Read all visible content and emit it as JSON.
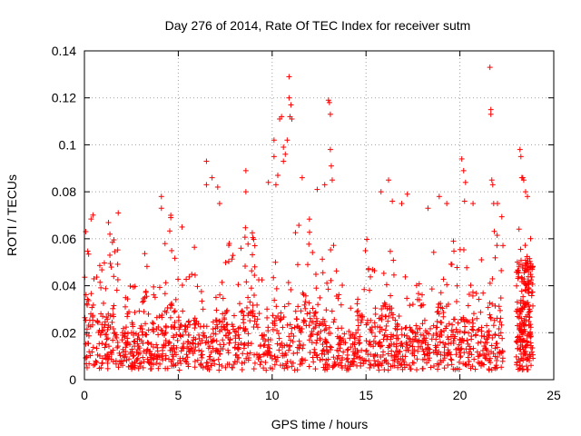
{
  "chart_data": {
    "type": "scatter",
    "title": "Day 276 of 2014, Rate Of TEC Index for receiver sutm",
    "xlabel": "GPS time / hours",
    "ylabel": "ROTI / TECUs",
    "xlim": [
      0,
      25
    ],
    "ylim": [
      0,
      0.14
    ],
    "xticks": [
      0,
      5,
      10,
      15,
      20,
      25
    ],
    "xtick_labels": [
      "0",
      "5",
      "10",
      "15",
      "20",
      "25"
    ],
    "yticks": [
      0,
      0.02,
      0.04,
      0.06,
      0.08,
      0.1,
      0.12,
      0.14
    ],
    "ytick_labels": [
      "0",
      "0.02",
      "0.04",
      "0.06",
      "0.08",
      "0.1",
      "0.12",
      "0.14"
    ],
    "grid": true,
    "marker": "+",
    "marker_color": "#ff0000",
    "series": [
      {
        "name": "ROTI",
        "data_gap_hours": [
          22.3,
          23.0
        ],
        "points": [
          [
            1.8,
            0.071
          ],
          [
            4.1,
            0.078
          ],
          [
            4.1,
            0.073
          ],
          [
            4.6,
            0.069
          ],
          [
            4.6,
            0.07
          ],
          [
            5.2,
            0.065
          ],
          [
            6.5,
            0.093
          ],
          [
            6.5,
            0.083
          ],
          [
            6.8,
            0.086
          ],
          [
            7.1,
            0.082
          ],
          [
            7.2,
            0.075
          ],
          [
            8.6,
            0.089
          ],
          [
            8.6,
            0.08
          ],
          [
            9.8,
            0.084
          ],
          [
            10.1,
            0.102
          ],
          [
            10.1,
            0.095
          ],
          [
            10.2,
            0.083
          ],
          [
            10.3,
            0.087
          ],
          [
            10.4,
            0.111
          ],
          [
            10.5,
            0.112
          ],
          [
            10.6,
            0.099
          ],
          [
            10.6,
            0.093
          ],
          [
            10.7,
            0.096
          ],
          [
            10.8,
            0.102
          ],
          [
            10.9,
            0.129
          ],
          [
            10.9,
            0.12
          ],
          [
            10.95,
            0.112
          ],
          [
            11.0,
            0.117
          ],
          [
            11.05,
            0.111
          ],
          [
            11.6,
            0.086
          ],
          [
            12.4,
            0.081
          ],
          [
            12.8,
            0.083
          ],
          [
            13.0,
            0.119
          ],
          [
            13.05,
            0.118
          ],
          [
            13.1,
            0.113
          ],
          [
            13.1,
            0.098
          ],
          [
            13.15,
            0.091
          ],
          [
            13.2,
            0.085
          ],
          [
            15.8,
            0.08
          ],
          [
            16.2,
            0.085
          ],
          [
            16.4,
            0.076
          ],
          [
            16.9,
            0.075
          ],
          [
            17.2,
            0.079
          ],
          [
            18.3,
            0.073
          ],
          [
            18.9,
            0.078
          ],
          [
            19.3,
            0.075
          ],
          [
            20.1,
            0.094
          ],
          [
            20.2,
            0.089
          ],
          [
            20.25,
            0.076
          ],
          [
            20.3,
            0.084
          ],
          [
            20.7,
            0.075
          ],
          [
            21.6,
            0.133
          ],
          [
            21.65,
            0.115
          ],
          [
            21.65,
            0.113
          ],
          [
            21.7,
            0.085
          ],
          [
            21.75,
            0.083
          ],
          [
            21.8,
            0.075
          ],
          [
            22.0,
            0.075
          ],
          [
            23.2,
            0.098
          ],
          [
            23.25,
            0.095
          ],
          [
            23.3,
            0.086
          ],
          [
            23.35,
            0.086
          ],
          [
            23.4,
            0.085
          ],
          [
            23.5,
            0.08
          ],
          [
            23.6,
            0.078
          ]
        ]
      }
    ]
  }
}
